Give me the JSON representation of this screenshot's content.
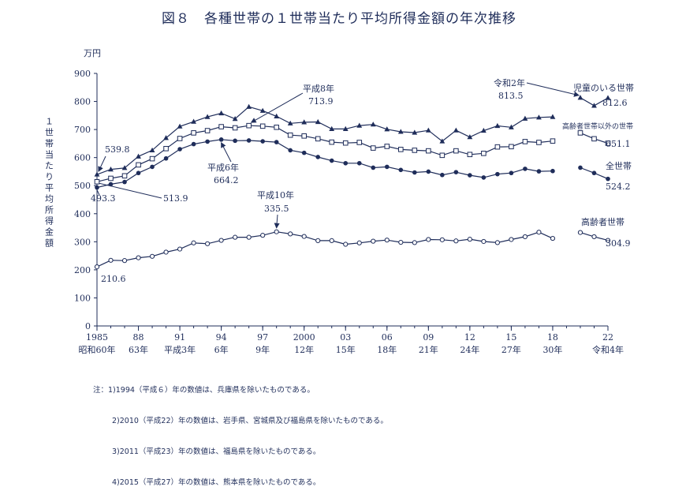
{
  "title": "図８　各種世帯の１世帯当たり平均所得金額の年次推移",
  "unit": "万円",
  "ylabel": "１世帯当たり平均所得金額",
  "notes": [
    "注：1)1994（平成６）年の数値は、兵庫県を除いたものである。",
    "2)2010（平成22）年の数値は、岩手県、宮城県及び福島県を除いたものである。",
    "3)2011（平成23）年の数値は、福島県を除いたものである。",
    "4)2015（平成27）年の数値は、熊本県を除いたものである。"
  ],
  "annotations": {
    "heisei8": {
      "label": "平成8年",
      "value": "713.9"
    },
    "heisei6": {
      "label": "平成6年",
      "value": "664.2"
    },
    "heisei10": {
      "label": "平成10年",
      "value": "335.5"
    },
    "reiwa2": {
      "label": "令和2年",
      "value": "813.5"
    },
    "children_1985": "539.8",
    "all_1985": "493.3",
    "others_1985": "513.9",
    "elderly_1985": "210.6",
    "children_end": "812.6",
    "others_end": "651.1",
    "all_end": "524.2",
    "elderly_end": "304.9"
  },
  "chart_data": {
    "type": "line",
    "title": "図８　各種世帯の１世帯当たり平均所得金額の年次推移",
    "ylabel": "１世帯当たり平均所得金額",
    "yunit": "万円",
    "ylim": [
      0,
      900
    ],
    "yticks": [
      0,
      100,
      200,
      300,
      400,
      500,
      600,
      700,
      800,
      900
    ],
    "xlim": [
      1985,
      2022
    ],
    "xticks": [
      {
        "year": 1985,
        "label": "1985",
        "era": "昭和60年"
      },
      {
        "year": 1988,
        "label": "88",
        "era": "63年"
      },
      {
        "year": 1991,
        "label": "91",
        "era": "平成3年"
      },
      {
        "year": 1994,
        "label": "94",
        "era": "6年"
      },
      {
        "year": 1997,
        "label": "97",
        "era": "9年"
      },
      {
        "year": 2000,
        "label": "2000",
        "era": "12年"
      },
      {
        "year": 2003,
        "label": "03",
        "era": "15年"
      },
      {
        "year": 2006,
        "label": "06",
        "era": "18年"
      },
      {
        "year": 2009,
        "label": "09",
        "era": "21年"
      },
      {
        "year": 2012,
        "label": "12",
        "era": "24年"
      },
      {
        "year": 2015,
        "label": "15",
        "era": "27年"
      },
      {
        "year": 2018,
        "label": "18",
        "era": "30年"
      },
      {
        "year": 2022,
        "label": "22",
        "era": "令和4年"
      }
    ],
    "grid": false,
    "series": [
      {
        "name": "児童のいる世帯",
        "marker": "triangle",
        "points": [
          [
            1985,
            539.8
          ],
          [
            1986,
            558
          ],
          [
            1987,
            563
          ],
          [
            1988,
            604
          ],
          [
            1989,
            626
          ],
          [
            1990,
            670
          ],
          [
            1991,
            711
          ],
          [
            1992,
            728
          ],
          [
            1993,
            745
          ],
          [
            1994,
            758
          ],
          [
            1995,
            738
          ],
          [
            1996,
            781
          ],
          [
            1997,
            767
          ],
          [
            1998,
            747
          ],
          [
            1999,
            722
          ],
          [
            2000,
            726
          ],
          [
            2001,
            727
          ],
          [
            2002,
            702
          ],
          [
            2003,
            702
          ],
          [
            2004,
            714
          ],
          [
            2005,
            718
          ],
          [
            2006,
            701
          ],
          [
            2007,
            692
          ],
          [
            2008,
            689
          ],
          [
            2009,
            697
          ],
          [
            2010,
            658
          ],
          [
            2011,
            697
          ],
          [
            2012,
            673
          ],
          [
            2013,
            696
          ],
          [
            2014,
            713
          ],
          [
            2015,
            708
          ],
          [
            2016,
            739
          ],
          [
            2017,
            743
          ],
          [
            2018,
            745
          ]
        ],
        "segment2": [
          [
            2020,
            813.5
          ],
          [
            2021,
            785
          ],
          [
            2022,
            812.6
          ]
        ]
      },
      {
        "name": "高齢者世帯以外の世帯",
        "marker": "square",
        "points": [
          [
            1985,
            513.9
          ],
          [
            1986,
            526
          ],
          [
            1987,
            535
          ],
          [
            1988,
            574
          ],
          [
            1989,
            596
          ],
          [
            1990,
            632
          ],
          [
            1991,
            668
          ],
          [
            1992,
            688
          ],
          [
            1993,
            696
          ],
          [
            1994,
            710
          ],
          [
            1995,
            706
          ],
          [
            1996,
            713.9
          ],
          [
            1997,
            712
          ],
          [
            1998,
            708
          ],
          [
            1999,
            680
          ],
          [
            2000,
            677
          ],
          [
            2001,
            667
          ],
          [
            2002,
            655
          ],
          [
            2003,
            652
          ],
          [
            2004,
            654
          ],
          [
            2005,
            634
          ],
          [
            2006,
            640
          ],
          [
            2007,
            629
          ],
          [
            2008,
            626
          ],
          [
            2009,
            624
          ],
          [
            2010,
            608
          ],
          [
            2011,
            624
          ],
          [
            2012,
            611
          ],
          [
            2013,
            615
          ],
          [
            2014,
            638
          ],
          [
            2015,
            639
          ],
          [
            2016,
            657
          ],
          [
            2017,
            654
          ],
          [
            2018,
            659
          ]
        ],
        "segment2": [
          [
            2020,
            688
          ],
          [
            2021,
            667
          ],
          [
            2022,
            651.1
          ]
        ]
      },
      {
        "name": "全世帯",
        "marker": "circle",
        "points": [
          [
            1985,
            493.3
          ],
          [
            1986,
            505
          ],
          [
            1987,
            513
          ],
          [
            1988,
            545
          ],
          [
            1989,
            567
          ],
          [
            1990,
            597
          ],
          [
            1991,
            630
          ],
          [
            1992,
            648
          ],
          [
            1993,
            657
          ],
          [
            1994,
            664.2
          ],
          [
            1995,
            660
          ],
          [
            1996,
            661
          ],
          [
            1997,
            658
          ],
          [
            1998,
            655
          ],
          [
            1999,
            626
          ],
          [
            2000,
            617
          ],
          [
            2001,
            602
          ],
          [
            2002,
            589
          ],
          [
            2003,
            580
          ],
          [
            2004,
            580
          ],
          [
            2005,
            564
          ],
          [
            2006,
            567
          ],
          [
            2007,
            556
          ],
          [
            2008,
            547
          ],
          [
            2009,
            550
          ],
          [
            2010,
            538
          ],
          [
            2011,
            548
          ],
          [
            2012,
            537
          ],
          [
            2013,
            529
          ],
          [
            2014,
            541
          ],
          [
            2015,
            545
          ],
          [
            2016,
            560
          ],
          [
            2017,
            551
          ],
          [
            2018,
            552
          ]
        ],
        "segment2": [
          [
            2020,
            564
          ],
          [
            2021,
            545
          ],
          [
            2022,
            524.2
          ]
        ]
      },
      {
        "name": "高齢者世帯",
        "marker": "circle-open",
        "points": [
          [
            1985,
            210.6
          ],
          [
            1986,
            234
          ],
          [
            1987,
            233
          ],
          [
            1988,
            243
          ],
          [
            1989,
            248
          ],
          [
            1990,
            263
          ],
          [
            1991,
            274
          ],
          [
            1992,
            296
          ],
          [
            1993,
            293
          ],
          [
            1994,
            305
          ],
          [
            1995,
            316
          ],
          [
            1996,
            316
          ],
          [
            1997,
            323
          ],
          [
            1998,
            335.5
          ],
          [
            1999,
            328
          ],
          [
            2000,
            319
          ],
          [
            2001,
            304
          ],
          [
            2002,
            304
          ],
          [
            2003,
            291
          ],
          [
            2004,
            296
          ],
          [
            2005,
            302
          ],
          [
            2006,
            306
          ],
          [
            2007,
            298
          ],
          [
            2008,
            297
          ],
          [
            2009,
            308
          ],
          [
            2010,
            307
          ],
          [
            2011,
            303
          ],
          [
            2012,
            309
          ],
          [
            2013,
            301
          ],
          [
            2014,
            297
          ],
          [
            2015,
            308
          ],
          [
            2016,
            318
          ],
          [
            2017,
            334
          ],
          [
            2018,
            312
          ]
        ],
        "segment2": [
          [
            2020,
            333
          ],
          [
            2021,
            318
          ],
          [
            2022,
            304.9
          ]
        ]
      }
    ]
  }
}
